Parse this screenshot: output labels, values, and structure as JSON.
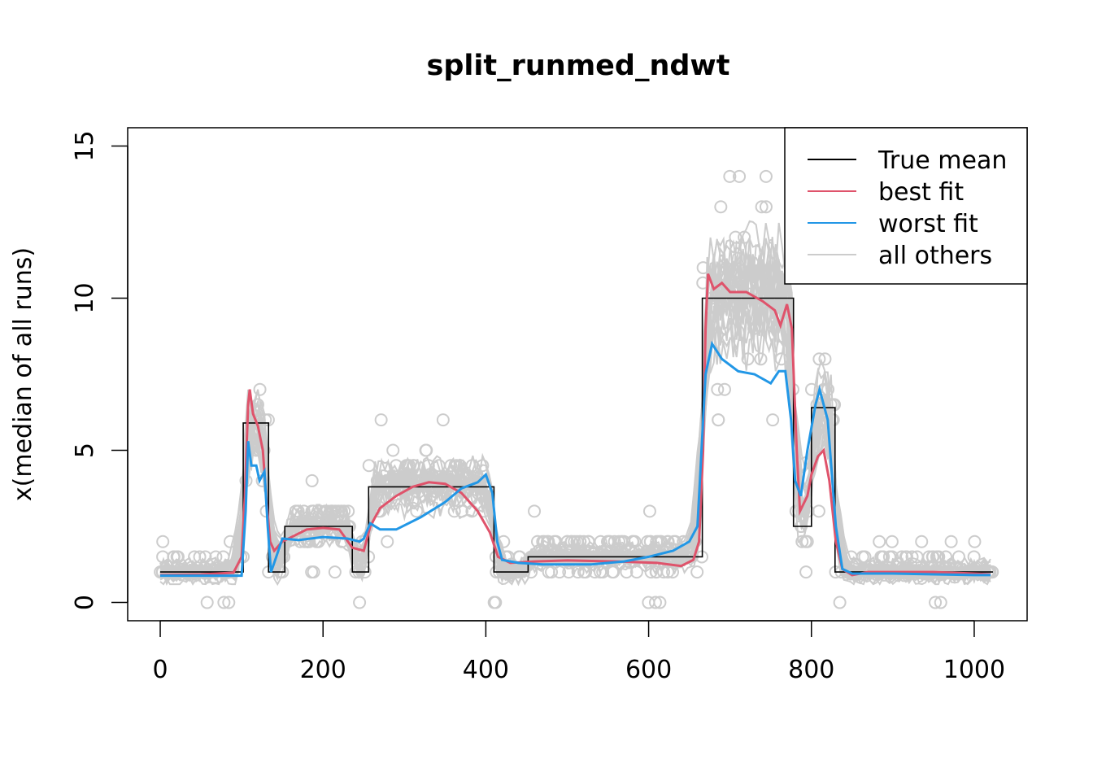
{
  "chart_data": {
    "type": "line",
    "title": "split_runmed_ndwt",
    "xlabel": "",
    "ylabel": "x(median of all runs)",
    "xlim": [
      -40,
      1065
    ],
    "ylim": [
      -0.6,
      15.6
    ],
    "x_ticks": [
      0,
      200,
      400,
      600,
      800,
      1000
    ],
    "y_ticks": [
      0,
      5,
      10,
      15
    ],
    "legend": {
      "position": "top-right",
      "entries": [
        {
          "label": "True mean",
          "color": "#000000"
        },
        {
          "label": "best fit",
          "color": "#DF536B"
        },
        {
          "label": "worst fit",
          "color": "#2297E6"
        },
        {
          "label": "all others",
          "color": "#CCCCCC"
        }
      ]
    },
    "series": [
      {
        "name": "True mean",
        "color": "#000000",
        "step": true,
        "points": [
          [
            0,
            1
          ],
          [
            102,
            1
          ],
          [
            102,
            5.9
          ],
          [
            133,
            5.9
          ],
          [
            133,
            1
          ],
          [
            153,
            1
          ],
          [
            153,
            2.5
          ],
          [
            236,
            2.5
          ],
          [
            236,
            1
          ],
          [
            256,
            1
          ],
          [
            256,
            3.8
          ],
          [
            410,
            3.8
          ],
          [
            410,
            1
          ],
          [
            452,
            1
          ],
          [
            452,
            1.5
          ],
          [
            666,
            1.5
          ],
          [
            666,
            10
          ],
          [
            778,
            10
          ],
          [
            778,
            2.5
          ],
          [
            800,
            2.5
          ],
          [
            800,
            6.4
          ],
          [
            829,
            6.4
          ],
          [
            829,
            1
          ],
          [
            1023,
            1
          ]
        ]
      },
      {
        "name": "best fit",
        "color": "#DF536B",
        "points": [
          [
            0,
            0.9
          ],
          [
            50,
            0.92
          ],
          [
            90,
            0.98
          ],
          [
            100,
            1.5
          ],
          [
            104,
            3.5
          ],
          [
            108,
            6.5
          ],
          [
            110,
            7.0
          ],
          [
            114,
            6.2
          ],
          [
            120,
            5.8
          ],
          [
            126,
            5.0
          ],
          [
            130,
            3.5
          ],
          [
            135,
            2.0
          ],
          [
            140,
            1.7
          ],
          [
            150,
            2.0
          ],
          [
            165,
            2.2
          ],
          [
            180,
            2.4
          ],
          [
            200,
            2.45
          ],
          [
            220,
            2.4
          ],
          [
            236,
            1.8
          ],
          [
            250,
            1.7
          ],
          [
            258,
            2.5
          ],
          [
            270,
            3.1
          ],
          [
            290,
            3.5
          ],
          [
            310,
            3.8
          ],
          [
            330,
            3.95
          ],
          [
            350,
            3.9
          ],
          [
            370,
            3.6
          ],
          [
            390,
            3.0
          ],
          [
            405,
            2.3
          ],
          [
            415,
            1.5
          ],
          [
            430,
            1.3
          ],
          [
            460,
            1.35
          ],
          [
            500,
            1.38
          ],
          [
            560,
            1.35
          ],
          [
            610,
            1.3
          ],
          [
            640,
            1.2
          ],
          [
            655,
            1.4
          ],
          [
            662,
            2.0
          ],
          [
            667,
            5.0
          ],
          [
            670,
            9.0
          ],
          [
            673,
            10.8
          ],
          [
            680,
            10.3
          ],
          [
            690,
            10.5
          ],
          [
            700,
            10.2
          ],
          [
            720,
            10.2
          ],
          [
            740,
            9.9
          ],
          [
            755,
            9.6
          ],
          [
            762,
            9.1
          ],
          [
            770,
            9.8
          ],
          [
            776,
            9.0
          ],
          [
            782,
            5.0
          ],
          [
            786,
            3.0
          ],
          [
            795,
            3.5
          ],
          [
            800,
            4.2
          ],
          [
            808,
            4.8
          ],
          [
            815,
            5.0
          ],
          [
            822,
            4.0
          ],
          [
            830,
            2.0
          ],
          [
            838,
            1.1
          ],
          [
            850,
            0.9
          ],
          [
            870,
            1.0
          ],
          [
            950,
            1.0
          ],
          [
            1000,
            0.95
          ],
          [
            1020,
            0.92
          ]
        ]
      },
      {
        "name": "worst fit",
        "color": "#2297E6",
        "points": [
          [
            0,
            0.88
          ],
          [
            50,
            0.88
          ],
          [
            100,
            0.88
          ],
          [
            105,
            3.0
          ],
          [
            108,
            5.3
          ],
          [
            112,
            4.5
          ],
          [
            118,
            4.5
          ],
          [
            122,
            4.0
          ],
          [
            128,
            4.3
          ],
          [
            132,
            2.5
          ],
          [
            136,
            1.0
          ],
          [
            140,
            1.3
          ],
          [
            150,
            2.1
          ],
          [
            170,
            2.05
          ],
          [
            200,
            2.15
          ],
          [
            230,
            2.1
          ],
          [
            245,
            2.0
          ],
          [
            250,
            2.1
          ],
          [
            258,
            2.6
          ],
          [
            270,
            2.4
          ],
          [
            290,
            2.4
          ],
          [
            320,
            2.8
          ],
          [
            350,
            3.3
          ],
          [
            370,
            3.75
          ],
          [
            390,
            3.95
          ],
          [
            400,
            4.2
          ],
          [
            408,
            3.6
          ],
          [
            414,
            2.0
          ],
          [
            420,
            1.4
          ],
          [
            440,
            1.3
          ],
          [
            470,
            1.25
          ],
          [
            530,
            1.25
          ],
          [
            570,
            1.35
          ],
          [
            600,
            1.5
          ],
          [
            630,
            1.7
          ],
          [
            650,
            2.0
          ],
          [
            660,
            2.5
          ],
          [
            665,
            5.0
          ],
          [
            670,
            7.5
          ],
          [
            678,
            8.5
          ],
          [
            690,
            8.0
          ],
          [
            710,
            7.6
          ],
          [
            730,
            7.5
          ],
          [
            750,
            7.2
          ],
          [
            760,
            7.6
          ],
          [
            768,
            7.6
          ],
          [
            775,
            6.0
          ],
          [
            780,
            4.0
          ],
          [
            787,
            3.5
          ],
          [
            795,
            5.0
          ],
          [
            805,
            6.5
          ],
          [
            810,
            7.0
          ],
          [
            820,
            6.0
          ],
          [
            830,
            2.5
          ],
          [
            838,
            1.1
          ],
          [
            850,
            0.95
          ],
          [
            900,
            0.95
          ],
          [
            1000,
            0.9
          ],
          [
            1020,
            0.9
          ]
        ]
      }
    ],
    "others_count": 30
  }
}
